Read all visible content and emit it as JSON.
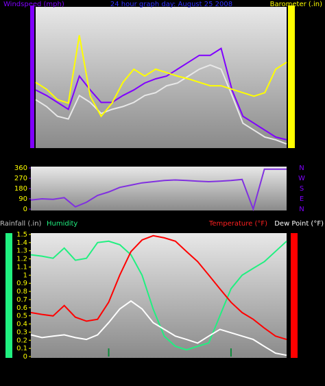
{
  "chart_data": [
    {
      "type": "line",
      "title": "24 hour graph day:  August 25 2008",
      "y_label": "Windspeed (mph)",
      "y2_label": "Barometer (.in)",
      "x": [
        0,
        1,
        2,
        3,
        4,
        5,
        6,
        7,
        8,
        9,
        10,
        11,
        12,
        13,
        14,
        15,
        16,
        17,
        18,
        19,
        20,
        21,
        22,
        23
      ],
      "xlim": [
        0,
        23
      ],
      "ylim": [
        0,
        10
      ],
      "y2lim": [
        29.9,
        30.1
      ],
      "series": [
        {
          "color": "#8000ff",
          "values": [
            4.1,
            3.7,
            3.2,
            2.7,
            5.1,
            4.1,
            3.2,
            3.2,
            3.7,
            4.1,
            4.6,
            4.9,
            5.1,
            5.6,
            6.1,
            6.6,
            6.6,
            7.1,
            4.1,
            2.2,
            1.7,
            1.2,
            0.7,
            0.5
          ]
        },
        {
          "color": "#e8e8e8",
          "values": [
            3.4,
            2.9,
            2.2,
            2.0,
            3.7,
            3.2,
            2.4,
            2.7,
            2.9,
            3.2,
            3.7,
            3.9,
            4.4,
            4.6,
            5.1,
            5.6,
            5.9,
            5.6,
            3.7,
            1.7,
            1.2,
            0.7,
            0.5,
            0.2
          ]
        },
        {
          "color": "#ffff00",
          "axis": "y2",
          "values": [
            29.993,
            29.983,
            29.968,
            29.963,
            30.061,
            29.973,
            29.944,
            29.963,
            29.993,
            30.012,
            30.002,
            30.012,
            30.007,
            30.002,
            29.998,
            29.993,
            29.988,
            29.988,
            29.983,
            29.978,
            29.973,
            29.978,
            30.012,
            30.022
          ]
        }
      ]
    },
    {
      "type": "line",
      "x": [
        0,
        1,
        2,
        3,
        4,
        5,
        6,
        7,
        8,
        9,
        10,
        11,
        12,
        13,
        14,
        15,
        16,
        17,
        18,
        19,
        20,
        21,
        22,
        23
      ],
      "xlim": [
        0,
        23
      ],
      "ylim": [
        0,
        360
      ],
      "yticks": [
        0,
        90,
        180,
        270,
        360
      ],
      "y2lim": [
        0,
        360
      ],
      "y2ticks": [
        {
          "value": 360,
          "label": "N"
        },
        {
          "value": 270,
          "label": "W"
        },
        {
          "value": 180,
          "label": "S"
        },
        {
          "value": 90,
          "label": "E"
        },
        {
          "value": 0,
          "label": "N"
        }
      ],
      "series": [
        {
          "color": "#8030e0",
          "values": [
            80,
            90,
            85,
            100,
            20,
            60,
            120,
            150,
            190,
            210,
            230,
            240,
            250,
            255,
            250,
            245,
            240,
            245,
            250,
            260,
            0,
            350,
            350,
            350
          ]
        }
      ]
    },
    {
      "type": "line",
      "x": [
        0,
        1,
        2,
        3,
        4,
        5,
        6,
        7,
        8,
        9,
        10,
        11,
        12,
        13,
        14,
        15,
        16,
        17,
        18,
        19,
        20,
        21,
        22,
        23
      ],
      "xlim": [
        0,
        23
      ],
      "ylim": [
        0,
        1.5
      ],
      "yticks": [
        0,
        0.1,
        0.2,
        0.3,
        0.4,
        0.5,
        0.6,
        0.7,
        0.8,
        0.9,
        1,
        1.1,
        1.2,
        1.3,
        1.4,
        1.5
      ],
      "y2lim": [
        50,
        90
      ],
      "y3lim": [
        20,
        100
      ],
      "series": [
        {
          "name": "Rainfall (.in)",
          "type": "bar",
          "color": "#0c8a3a",
          "values": [
            0,
            0,
            0,
            0,
            0,
            0,
            0,
            0.1,
            0,
            0,
            0,
            0,
            0,
            0,
            0,
            0,
            0,
            0,
            0.1,
            0,
            0,
            0,
            0,
            0
          ]
        },
        {
          "name": "Humidity",
          "color": "#20f080",
          "axis": "y3",
          "values": [
            86.7,
            85.8,
            84.4,
            91.1,
            83.1,
            84.4,
            94.7,
            95.6,
            93.3,
            86.7,
            73.3,
            51.1,
            33.3,
            26.7,
            24.4,
            26.7,
            28.9,
            46.7,
            64.4,
            73.3,
            77.8,
            82.2,
            88.9,
            95.6
          ]
        },
        {
          "name": "Temperature (°F)",
          "color": "#ff0000",
          "axis": "y2",
          "values": [
            64.4,
            63.8,
            63.3,
            66.7,
            62.9,
            61.6,
            62.2,
            67.8,
            76.7,
            84.4,
            88.2,
            89.6,
            88.9,
            87.8,
            84.4,
            81.1,
            76.7,
            72.2,
            67.8,
            64.4,
            62.2,
            59.3,
            56.7,
            55.6
          ]
        },
        {
          "name": "Dew Point (°F)",
          "color": "#ffffff",
          "axis": "y2",
          "values": [
            57.1,
            56.2,
            56.7,
            57.1,
            56.2,
            55.6,
            57.1,
            61.1,
            65.6,
            68.2,
            65.6,
            61.1,
            58.9,
            56.7,
            55.6,
            54.4,
            56.7,
            58.9,
            57.8,
            56.7,
            55.6,
            53.3,
            51.1,
            50.4
          ]
        }
      ]
    }
  ]
}
